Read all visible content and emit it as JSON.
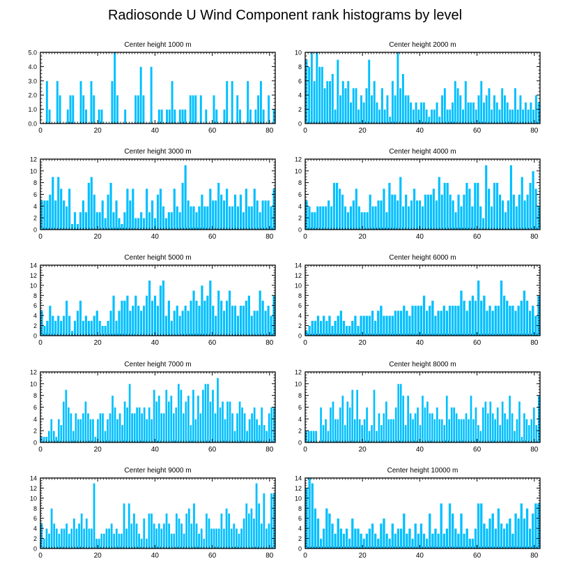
{
  "title": "Radiosonde U Wind Component rank histograms by level",
  "colors": {
    "bar": "#00bfff",
    "bar_edge": "#ffffff",
    "axis": "#000000",
    "text": "#000000"
  },
  "chart_data": [
    {
      "type": "bar",
      "title": "Center height 1000 m",
      "xlim": [
        0,
        82
      ],
      "ylim": [
        0,
        5
      ],
      "xticks": [
        0,
        20,
        40,
        60,
        80
      ],
      "yticks": [
        0,
        1,
        2,
        3,
        4,
        5
      ],
      "ytick_labels": [
        "0.0",
        "1.0",
        "2.0",
        "3.0",
        "4.0",
        "5.0"
      ],
      "values": [
        0,
        0,
        3,
        1,
        0,
        0,
        3,
        2,
        0,
        0,
        1,
        2,
        2,
        0,
        0,
        3,
        2,
        1,
        0,
        3,
        2,
        0,
        1,
        1,
        0,
        0,
        0,
        3,
        5,
        2,
        0,
        0,
        1,
        0,
        0,
        0,
        2,
        2,
        4,
        2,
        0,
        0,
        4,
        0,
        0,
        1,
        1,
        0,
        1,
        1,
        3,
        1,
        0,
        1,
        1,
        1,
        0,
        2,
        2,
        2,
        0,
        2,
        0,
        1,
        0,
        0,
        2,
        1,
        0,
        0,
        1,
        3,
        0,
        3,
        0,
        2,
        1,
        0,
        0,
        3,
        1,
        0,
        1,
        2,
        3,
        1,
        0,
        2,
        0,
        1
      ]
    },
    {
      "type": "bar",
      "title": "Center height 2000 m",
      "xlim": [
        0,
        82
      ],
      "ylim": [
        0,
        10
      ],
      "xticks": [
        0,
        20,
        40,
        60,
        80
      ],
      "yticks": [
        0,
        2,
        4,
        6,
        8,
        10
      ],
      "values": [
        9,
        8,
        10,
        6,
        10,
        8,
        8,
        5,
        6,
        6,
        7,
        2,
        9,
        4,
        6,
        5,
        6,
        3,
        5,
        5,
        2,
        4,
        3,
        5,
        9,
        4,
        6,
        3,
        2,
        5,
        2,
        4,
        1,
        6,
        4,
        10,
        5,
        7,
        4,
        4,
        3,
        2,
        3,
        2,
        3,
        3,
        2,
        1,
        2,
        2,
        3,
        1,
        4,
        5,
        2,
        2,
        3,
        6,
        5,
        4,
        2,
        6,
        3,
        3,
        3,
        2,
        4,
        6,
        3,
        4,
        5,
        2,
        4,
        3,
        2,
        5,
        4,
        3,
        2,
        2,
        5,
        2,
        4,
        2,
        3,
        2,
        3,
        2,
        4,
        3
      ]
    },
    {
      "type": "bar",
      "title": "Center height 3000 m",
      "xlim": [
        0,
        82
      ],
      "ylim": [
        0,
        12
      ],
      "xticks": [
        0,
        20,
        40,
        60,
        80
      ],
      "yticks": [
        0,
        2,
        4,
        6,
        8,
        10,
        12
      ],
      "values": [
        5,
        5,
        5,
        6,
        9,
        5,
        9,
        7,
        5,
        4,
        7,
        1,
        3,
        1,
        3,
        5,
        3,
        8,
        9,
        6,
        3,
        3,
        5,
        2,
        6,
        8,
        3,
        5,
        2,
        1,
        3,
        7,
        5,
        7,
        2,
        2,
        3,
        2,
        7,
        3,
        5,
        2,
        6,
        7,
        4,
        2,
        3,
        3,
        7,
        4,
        3,
        8,
        11,
        5,
        4,
        4,
        3,
        4,
        6,
        4,
        4,
        7,
        5,
        5,
        8,
        6,
        5,
        7,
        4,
        4,
        6,
        4,
        6,
        3,
        7,
        4,
        4,
        7,
        5,
        3,
        5,
        5,
        5,
        4,
        7
      ]
    },
    {
      "type": "bar",
      "title": "Center height 4000 m",
      "xlim": [
        0,
        82
      ],
      "ylim": [
        0,
        12
      ],
      "xticks": [
        0,
        20,
        40,
        60,
        80
      ],
      "yticks": [
        0,
        2,
        4,
        6,
        8,
        10,
        12
      ],
      "values": [
        5,
        4,
        3,
        3,
        4,
        4,
        4,
        4,
        5,
        4,
        8,
        8,
        7,
        6,
        4,
        3,
        4,
        5,
        7,
        4,
        3,
        3,
        3,
        6,
        4,
        4,
        5,
        5,
        7,
        3,
        8,
        6,
        6,
        5,
        9,
        4,
        6,
        4,
        5,
        7,
        5,
        5,
        4,
        6,
        6,
        6,
        7,
        5,
        9,
        6,
        8,
        8,
        6,
        5,
        3,
        6,
        4,
        6,
        8,
        7,
        4,
        8,
        8,
        4,
        2,
        11,
        7,
        4,
        8,
        8,
        6,
        5,
        3,
        5,
        11,
        6,
        4,
        6,
        9,
        5,
        6,
        8,
        10,
        7,
        4
      ]
    },
    {
      "type": "bar",
      "title": "Center height 5000 m",
      "xlim": [
        0,
        82
      ],
      "ylim": [
        0,
        14
      ],
      "xticks": [
        0,
        20,
        40,
        60,
        80
      ],
      "yticks": [
        0,
        2,
        4,
        6,
        8,
        10,
        12,
        14
      ],
      "values": [
        5,
        2,
        3,
        6,
        4,
        3,
        4,
        3,
        4,
        7,
        4,
        1,
        3,
        5,
        7,
        3,
        4,
        3,
        3,
        4,
        5,
        3,
        2,
        2,
        3,
        5,
        8,
        3,
        5,
        7,
        7,
        8,
        5,
        6,
        8,
        6,
        5,
        6,
        8,
        11,
        7,
        8,
        6,
        10,
        11,
        4,
        7,
        3,
        5,
        6,
        4,
        5,
        6,
        5,
        7,
        9,
        7,
        6,
        10,
        7,
        8,
        11,
        6,
        4,
        9,
        7,
        5,
        7,
        9,
        6,
        6,
        4,
        6,
        6,
        7,
        8,
        4,
        5,
        5,
        9,
        7,
        5,
        6,
        4,
        8
      ]
    },
    {
      "type": "bar",
      "title": "Center height 6000 m",
      "xlim": [
        0,
        82
      ],
      "ylim": [
        0,
        14
      ],
      "xticks": [
        0,
        20,
        40,
        60,
        80
      ],
      "yticks": [
        0,
        2,
        4,
        6,
        8,
        10,
        12,
        14
      ],
      "values": [
        1,
        2,
        3,
        3,
        4,
        3,
        4,
        3,
        4,
        2,
        3,
        4,
        5,
        3,
        2,
        2,
        3,
        4,
        2,
        4,
        4,
        4,
        4,
        5,
        3,
        5,
        6,
        4,
        4,
        4,
        4,
        5,
        5,
        5,
        6,
        5,
        4,
        6,
        6,
        6,
        6,
        8,
        5,
        6,
        7,
        4,
        5,
        5,
        6,
        5,
        6,
        6,
        6,
        6,
        9,
        7,
        5,
        7,
        8,
        7,
        11,
        7,
        8,
        5,
        6,
        5,
        6,
        6,
        11,
        8,
        7,
        6,
        6,
        5,
        6,
        7,
        9,
        7,
        5,
        6,
        4,
        8
      ]
    },
    {
      "type": "bar",
      "title": "Center height 7000 m",
      "xlim": [
        0,
        82
      ],
      "ylim": [
        0,
        12
      ],
      "xticks": [
        0,
        20,
        40,
        60,
        80
      ],
      "yticks": [
        0,
        2,
        4,
        6,
        8,
        10,
        12
      ],
      "values": [
        1,
        1,
        1,
        2,
        4,
        2,
        1,
        4,
        3,
        7,
        9,
        6,
        5,
        2,
        5,
        4,
        4,
        5,
        7,
        5,
        4,
        4,
        1,
        4,
        5,
        5,
        2,
        4,
        5,
        8,
        6,
        4,
        5,
        3,
        7,
        6,
        10,
        5,
        5,
        6,
        6,
        5,
        6,
        4,
        6,
        4,
        9,
        7,
        8,
        5,
        5,
        9,
        7,
        8,
        5,
        6,
        10,
        9,
        5,
        7,
        8,
        3,
        9,
        4,
        8,
        5,
        9,
        10,
        10,
        7,
        9,
        5,
        11,
        6,
        7,
        4,
        7,
        7,
        5,
        2,
        5,
        7,
        6,
        5,
        2,
        4,
        5,
        6,
        4,
        3,
        6,
        3,
        2,
        5,
        6,
        6
      ]
    },
    {
      "type": "bar",
      "title": "Center height 8000 m",
      "xlim": [
        0,
        82
      ],
      "ylim": [
        0,
        12
      ],
      "xticks": [
        0,
        20,
        40,
        60,
        80
      ],
      "yticks": [
        0,
        2,
        4,
        6,
        8,
        10,
        12
      ],
      "values": [
        2,
        2,
        2,
        2,
        2,
        0,
        6,
        3,
        4,
        2,
        6,
        7,
        4,
        4,
        6,
        8,
        3,
        7,
        6,
        9,
        4,
        9,
        4,
        3,
        4,
        6,
        2,
        3,
        9,
        2,
        5,
        3,
        5,
        7,
        4,
        4,
        4,
        6,
        10,
        10,
        8,
        3,
        8,
        5,
        4,
        5,
        6,
        3,
        8,
        6,
        7,
        5,
        5,
        4,
        6,
        4,
        4,
        3,
        8,
        4,
        6,
        6,
        5,
        4,
        4,
        4,
        5,
        4,
        8,
        4,
        6,
        3,
        2,
        6,
        7,
        5,
        7,
        5,
        4,
        6,
        3,
        7,
        5,
        4,
        8,
        5,
        2,
        4,
        7,
        1,
        5,
        4,
        3,
        4,
        6,
        3,
        8
      ]
    },
    {
      "type": "bar",
      "title": "Center height 9000 m",
      "xlim": [
        0,
        82
      ],
      "ylim": [
        0,
        14
      ],
      "xticks": [
        0,
        20,
        40,
        60,
        80
      ],
      "yticks": [
        0,
        2,
        4,
        6,
        8,
        10,
        12,
        14
      ],
      "values": [
        5,
        2,
        4,
        3,
        8,
        5,
        4,
        3,
        4,
        4,
        5,
        3,
        4,
        6,
        4,
        5,
        7,
        4,
        6,
        4,
        4,
        13,
        2,
        2,
        3,
        3,
        4,
        4,
        5,
        3,
        4,
        3,
        3,
        9,
        4,
        9,
        5,
        7,
        5,
        3,
        2,
        6,
        2,
        7,
        7,
        5,
        4,
        5,
        4,
        5,
        7,
        5,
        3,
        3,
        7,
        6,
        5,
        3,
        7,
        8,
        5,
        9,
        5,
        3,
        4,
        2,
        7,
        6,
        4,
        4,
        4,
        4,
        7,
        4,
        8,
        7,
        4,
        5,
        4,
        3,
        4,
        6,
        9,
        7,
        8,
        6,
        13,
        9,
        5,
        11,
        4,
        5,
        11,
        11
      ]
    },
    {
      "type": "bar",
      "title": "Center height 10000 m",
      "xlim": [
        0,
        82
      ],
      "ylim": [
        0,
        14
      ],
      "xticks": [
        0,
        20,
        40,
        60,
        80
      ],
      "yticks": [
        0,
        2,
        4,
        6,
        8,
        10,
        12,
        14
      ],
      "values": [
        12,
        14,
        13,
        8,
        6,
        2,
        4,
        8,
        7,
        5,
        3,
        6,
        4,
        3,
        4,
        2,
        6,
        4,
        4,
        3,
        2,
        3,
        4,
        5,
        3,
        2,
        5,
        6,
        3,
        2,
        5,
        3,
        4,
        4,
        7,
        3,
        4,
        2,
        5,
        3,
        5,
        3,
        2,
        7,
        3,
        4,
        3,
        9,
        3,
        4,
        9,
        7,
        4,
        3,
        7,
        3,
        4,
        2,
        2,
        4,
        9,
        9,
        5,
        4,
        6,
        7,
        4,
        8,
        5,
        4,
        5,
        6,
        3,
        7,
        6,
        9,
        6,
        8,
        4,
        7,
        9,
        9
      ]
    }
  ]
}
